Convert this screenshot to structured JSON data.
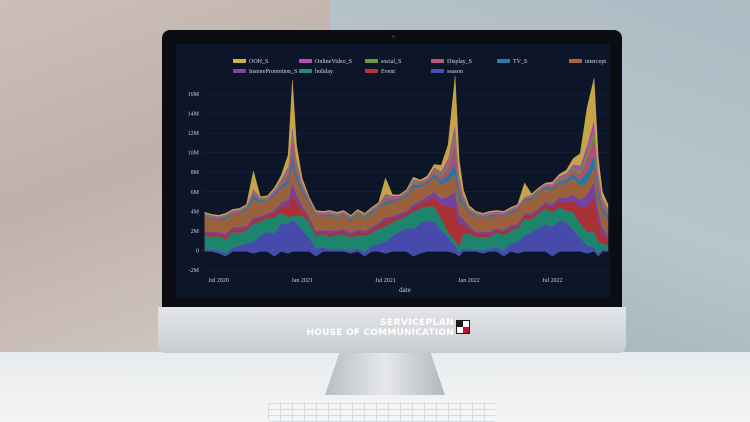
{
  "brand": {
    "line1": "SERVICEPLAN",
    "line2": "HOUSE OF COMMUNICATION"
  },
  "chart_data": {
    "type": "area",
    "title": "",
    "xlabel": "date",
    "ylabel": "",
    "ylim": [
      -2,
      16
    ],
    "y_ticks": [
      "-2M",
      "0",
      "2M",
      "4M",
      "6M",
      "8M",
      "10M",
      "12M",
      "14M",
      "16M"
    ],
    "x_ticks": [
      "Jul 2020",
      "Jan 2021",
      "Jul 2021",
      "Jan 2022",
      "Jul 2022"
    ],
    "x_tick_months": [
      6,
      12,
      18,
      24,
      30
    ],
    "x_range_months": [
      4.8,
      34
    ],
    "legend_position": "top",
    "background": "#0c1628",
    "x": [
      5,
      5.5,
      6,
      6.5,
      7,
      7.5,
      8,
      8.5,
      9,
      9.5,
      10,
      10.5,
      11,
      11.3,
      11.6,
      12,
      12.5,
      13,
      13.5,
      14,
      14.5,
      15,
      15.5,
      16,
      16.5,
      17,
      17.5,
      18,
      18.5,
      19,
      19.5,
      20,
      20.5,
      21,
      21.5,
      22,
      22.5,
      23,
      23.3,
      23.6,
      24,
      24.5,
      25,
      25.5,
      26,
      26.5,
      27,
      27.5,
      28,
      28.5,
      29,
      29.5,
      30,
      30.5,
      31,
      31.5,
      32,
      32.5,
      33,
      33.3,
      33.6,
      34
    ],
    "series": [
      {
        "name": "season",
        "color": "#4c50b6",
        "values": [
          0.2,
          0.2,
          0.3,
          0.3,
          0.4,
          0.6,
          0.8,
          1.2,
          1.6,
          2,
          2.4,
          2.8,
          3.1,
          3.2,
          3,
          2.2,
          1.4,
          0.8,
          0.4,
          0.3,
          0.2,
          0.2,
          0.3,
          0.3,
          0.4,
          0.6,
          0.8,
          1.2,
          1.6,
          2,
          2.4,
          2.8,
          3.1,
          3.2,
          3,
          2.2,
          1.4,
          0.8,
          0.4,
          0.3,
          0.2,
          0.2,
          0.3,
          0.3,
          0.4,
          0.6,
          0.8,
          1.2,
          1.6,
          2,
          2.4,
          2.8,
          3.1,
          3.2,
          3,
          2.2,
          1.4,
          0.8,
          0.4,
          0.3,
          0.2,
          0.2
        ]
      },
      {
        "name": "holiday",
        "color": "#1f8f73",
        "values": [
          1.4,
          1.3,
          1.5,
          1.4,
          1.6,
          1.3,
          1.4,
          1.8,
          1.5,
          1.4,
          1.6,
          1.2,
          0.6,
          0.5,
          0.6,
          1.5,
          1.6,
          1.3,
          1.4,
          1.2,
          1.5,
          1.6,
          1.3,
          1.4,
          1.7,
          1.3,
          1.5,
          1.6,
          1.4,
          1.3,
          1.2,
          1.8,
          1.5,
          1.4,
          1.6,
          1.2,
          0.6,
          0.5,
          0.6,
          1.5,
          1.6,
          1.3,
          1.4,
          1.2,
          1.5,
          1.6,
          1.3,
          1.4,
          1.7,
          1.3,
          1.5,
          1.6,
          1.4,
          1.3,
          1.2,
          1.8,
          1.5,
          1.4,
          1.6,
          1.2,
          0.6,
          0.5
        ]
      },
      {
        "name": "Event",
        "color": "#b8333a",
        "values": [
          0.3,
          0.3,
          0.2,
          0.3,
          0.3,
          0.3,
          0.2,
          0.4,
          0.3,
          0.3,
          0.4,
          0.6,
          1.2,
          2.2,
          1.4,
          0.6,
          0.3,
          0.3,
          0.2,
          0.3,
          0.3,
          0.3,
          0.2,
          0.4,
          0.3,
          0.3,
          0.4,
          0.6,
          0.4,
          0.3,
          0.3,
          0.4,
          0.5,
          0.6,
          1,
          1.4,
          2.6,
          3.4,
          2.2,
          1,
          0.5,
          0.3,
          0.3,
          0.2,
          0.3,
          0.3,
          0.3,
          0.2,
          0.4,
          0.3,
          0.3,
          0.4,
          0.5,
          0.6,
          0.8,
          1.2,
          1.6,
          2.6,
          3.6,
          2.2,
          1,
          0.6
        ]
      },
      {
        "name": "InstorePromotion_S",
        "color": "#7a49a8",
        "values": [
          0.2,
          0.2,
          0.2,
          0.3,
          0.2,
          0.3,
          0.2,
          0.3,
          0.2,
          0.2,
          0.3,
          0.4,
          0.6,
          1.2,
          0.8,
          0.4,
          0.3,
          0.2,
          0.2,
          0.3,
          0.2,
          0.2,
          0.3,
          0.2,
          0.2,
          0.3,
          0.2,
          0.3,
          0.2,
          0.3,
          0.2,
          0.3,
          0.3,
          0.4,
          0.5,
          0.6,
          1,
          1.6,
          1,
          0.5,
          0.3,
          0.2,
          0.2,
          0.3,
          0.2,
          0.2,
          0.3,
          0.2,
          0.2,
          0.3,
          0.2,
          0.3,
          0.3,
          0.4,
          0.5,
          0.6,
          0.8,
          1.2,
          1.6,
          1,
          0.6,
          0.4
        ]
      },
      {
        "name": "intercept",
        "color": "#a8683f",
        "values": [
          1.4,
          1.3,
          1.2,
          1.5,
          1.3,
          1.4,
          1.6,
          1.8,
          1.4,
          1.3,
          1.5,
          1.4,
          1.6,
          1.8,
          1.5,
          1.4,
          1.3,
          1.6,
          1.4,
          1.5,
          1.3,
          1.4,
          1.2,
          1.5,
          1.3,
          1.4,
          1.6,
          1.3,
          1.5,
          1.4,
          1.5,
          1.7,
          1.4,
          1.3,
          1.5,
          1.4,
          1.6,
          1.8,
          1.5,
          1.4,
          1.3,
          1.6,
          1.4,
          1.5,
          1.3,
          1.4,
          1.2,
          1.5,
          1.3,
          1.4,
          1.6,
          1.3,
          1.5,
          1.4,
          1.5,
          1.7,
          1.4,
          1.3,
          1.5,
          1.4,
          1.6,
          1.7
        ]
      },
      {
        "name": "TV_S",
        "color": "#2a7fa6",
        "values": [
          0.1,
          0.1,
          0.1,
          0.2,
          0.1,
          0.1,
          0.2,
          0.4,
          0.2,
          0.1,
          0.2,
          0.3,
          0.5,
          1,
          0.6,
          0.3,
          0.2,
          0.1,
          0.1,
          0.2,
          0.1,
          0.1,
          0.2,
          0.1,
          0.1,
          0.2,
          0.1,
          0.3,
          0.2,
          0.1,
          0.2,
          0.3,
          0.2,
          0.2,
          0.3,
          0.4,
          0.6,
          1.2,
          0.7,
          0.3,
          0.2,
          0.1,
          0.1,
          0.2,
          0.1,
          0.1,
          0.2,
          0.1,
          0.1,
          0.2,
          0.1,
          0.2,
          0.2,
          0.2,
          0.3,
          0.4,
          0.6,
          1,
          1.2,
          0.7,
          0.4,
          0.3
        ]
      },
      {
        "name": "Display_S",
        "color": "#b9577a",
        "values": [
          0.1,
          0.1,
          0.1,
          0.1,
          0.1,
          0.1,
          0.1,
          0.3,
          0.1,
          0.1,
          0.2,
          0.3,
          0.6,
          1.6,
          0.8,
          0.3,
          0.2,
          0.1,
          0.1,
          0.1,
          0.1,
          0.1,
          0.1,
          0.1,
          0.1,
          0.1,
          0.1,
          0.4,
          0.2,
          0.1,
          0.2,
          0.2,
          0.2,
          0.2,
          0.3,
          0.4,
          0.8,
          2.2,
          1,
          0.4,
          0.2,
          0.1,
          0.1,
          0.1,
          0.1,
          0.1,
          0.1,
          0.1,
          0.1,
          0.1,
          0.1,
          0.1,
          0.2,
          0.2,
          0.3,
          0.4,
          0.6,
          1.4,
          1.8,
          1,
          0.5,
          0.3
        ]
      },
      {
        "name": "social_S",
        "color": "#6a9a3c",
        "values": [
          0.1,
          0.1,
          0.1,
          0.1,
          0.1,
          0.1,
          0.1,
          0.2,
          0.1,
          0.1,
          0.1,
          0.2,
          0.3,
          0.6,
          0.4,
          0.2,
          0.1,
          0.1,
          0.1,
          0.1,
          0.1,
          0.1,
          0.1,
          0.1,
          0.1,
          0.1,
          0.1,
          0.2,
          0.1,
          0.1,
          0.1,
          0.2,
          0.1,
          0.1,
          0.2,
          0.3,
          0.4,
          0.8,
          0.4,
          0.2,
          0.1,
          0.1,
          0.1,
          0.1,
          0.1,
          0.1,
          0.1,
          0.1,
          0.1,
          0.1,
          0.1,
          0.1,
          0.1,
          0.2,
          0.2,
          0.3,
          0.4,
          0.6,
          0.8,
          0.4,
          0.3,
          0.2
        ]
      },
      {
        "name": "OnlineVideo_S",
        "color": "#b24fb8",
        "values": [
          0.1,
          0.1,
          0.1,
          0.1,
          0.1,
          0.1,
          0.1,
          0.2,
          0.1,
          0.1,
          0.1,
          0.2,
          0.4,
          0.8,
          0.4,
          0.2,
          0.1,
          0.1,
          0.1,
          0.1,
          0.1,
          0.1,
          0.1,
          0.1,
          0.1,
          0.1,
          0.1,
          0.2,
          0.1,
          0.1,
          0.1,
          0.2,
          0.1,
          0.1,
          0.2,
          0.3,
          0.5,
          1,
          0.5,
          0.2,
          0.1,
          0.1,
          0.1,
          0.1,
          0.1,
          0.1,
          0.1,
          0.1,
          0.1,
          0.1,
          0.1,
          0.1,
          0.1,
          0.2,
          0.2,
          0.3,
          0.5,
          0.8,
          1,
          0.5,
          0.3,
          0.2
        ]
      },
      {
        "name": "OOH_S",
        "color": "#d6b04a",
        "values": [
          0.1,
          0.1,
          0.1,
          0.1,
          0.1,
          0.1,
          0.1,
          1.8,
          0.1,
          0.1,
          0.2,
          0.4,
          1.2,
          4.6,
          1.4,
          0.4,
          0.1,
          0.1,
          0.1,
          0.1,
          0.1,
          0.1,
          0.1,
          0.1,
          0.1,
          0.1,
          0.1,
          1.6,
          0.1,
          0.1,
          0.1,
          0.2,
          0.1,
          0.2,
          0.3,
          0.6,
          1.4,
          4.8,
          1.6,
          0.5,
          0.2,
          0.1,
          0.1,
          0.1,
          0.1,
          0.1,
          0.1,
          0.1,
          1.4,
          0.1,
          0.1,
          0.1,
          0.2,
          0.2,
          0.3,
          0.6,
          1.2,
          3.8,
          4.2,
          1.4,
          0.6,
          0.4
        ]
      }
    ],
    "legend_order": [
      "OOH_S",
      "OnlineVideo_S",
      "social_S",
      "Display_S",
      "TV_S",
      "intercept",
      "InstorePromotion_S",
      "holiday",
      "Event",
      "season"
    ]
  }
}
